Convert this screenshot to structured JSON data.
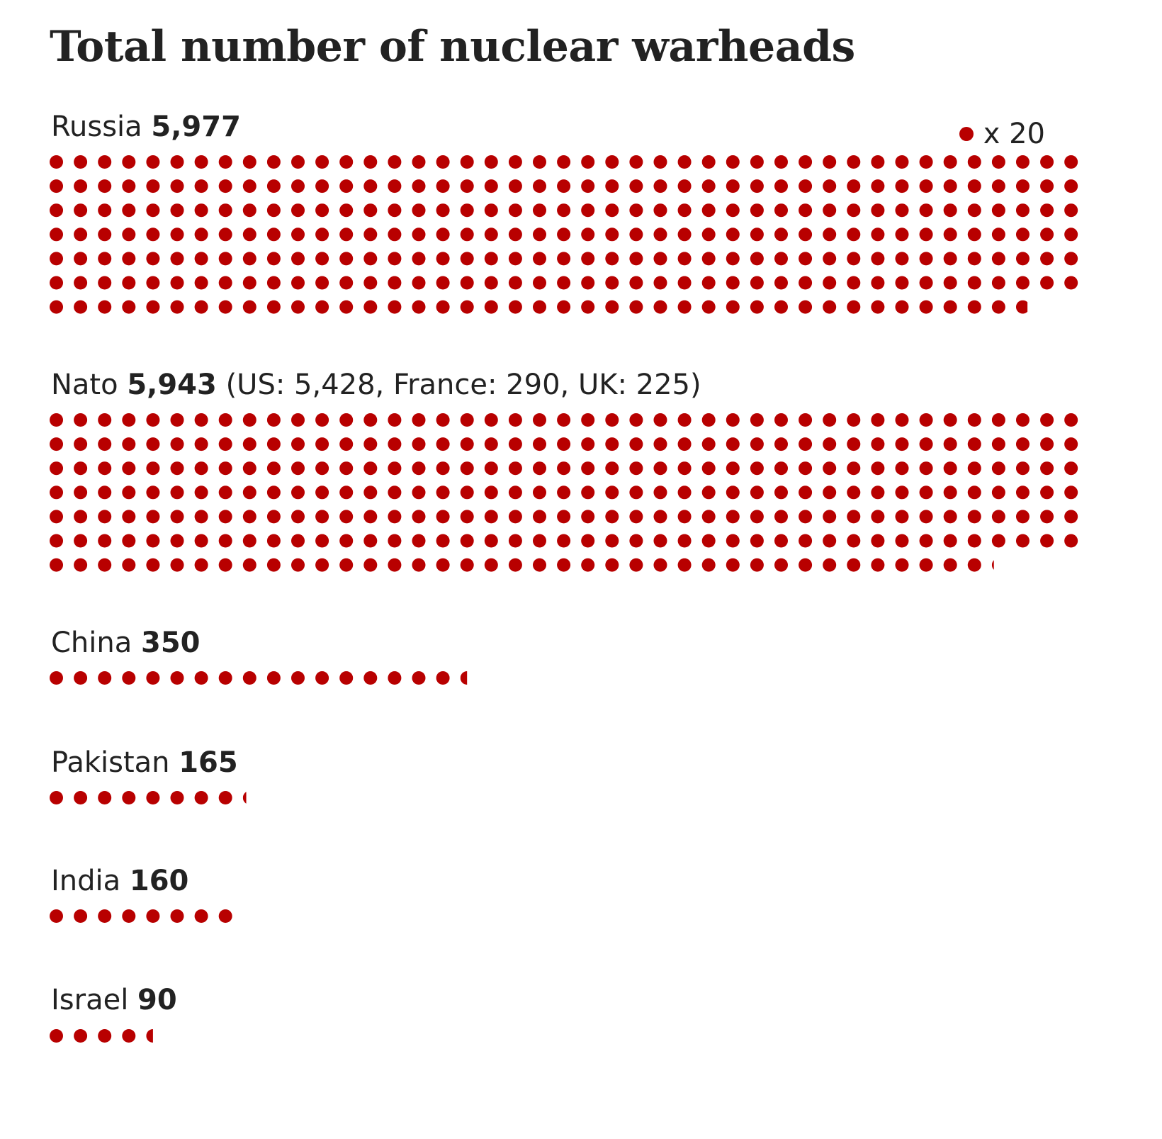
{
  "title": "Total number of nuclear warheads",
  "legend": {
    "label": "x 20",
    "unit_per_dot": 20
  },
  "colors": {
    "dot": "#b80000",
    "text": "#222222"
  },
  "chart_data": {
    "type": "waffle",
    "title": "Total number of nuclear warheads",
    "unit_per_dot": 20,
    "dots_per_row": 43,
    "series": [
      {
        "name": "Russia",
        "value": 5977,
        "value_label": "5,977",
        "note": ""
      },
      {
        "name": "Nato",
        "value": 5943,
        "value_label": "5,943",
        "note": "(US: 5,428, France: 290, UK: 225)"
      },
      {
        "name": "China",
        "value": 350,
        "value_label": "350",
        "note": ""
      },
      {
        "name": "Pakistan",
        "value": 165,
        "value_label": "165",
        "note": ""
      },
      {
        "name": "India",
        "value": 160,
        "value_label": "160",
        "note": ""
      },
      {
        "name": "Israel",
        "value": 90,
        "value_label": "90",
        "note": ""
      }
    ]
  }
}
